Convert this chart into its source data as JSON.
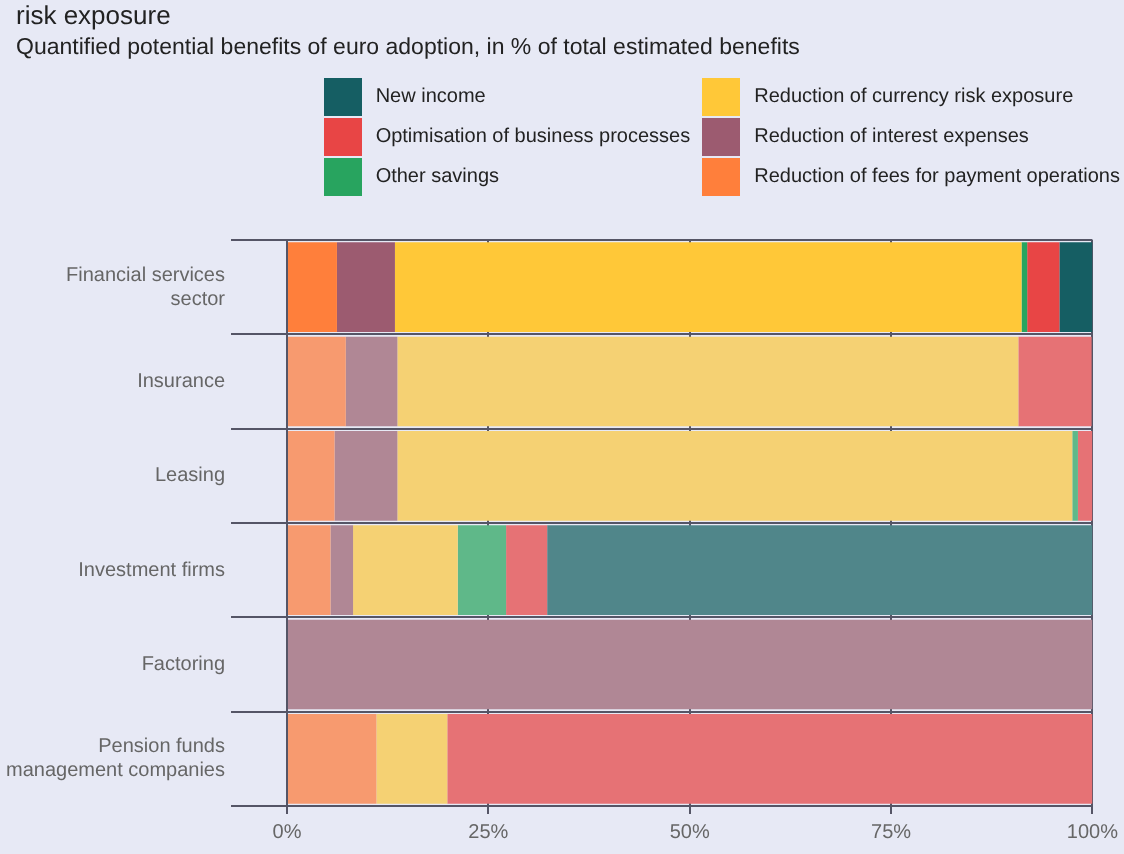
{
  "chart_data": {
    "type": "bar",
    "title": "risk exposure",
    "subtitle": "Quantified potential benefits of euro adoption, in % of total estimated benefits",
    "orientation": "horizontal",
    "stacked": true,
    "grid": true,
    "legend": "top",
    "categories": [
      "Financial services sector",
      "Insurance",
      "Leasing",
      "Investment firms",
      "Factoring",
      "Pension funds management companies"
    ],
    "xlim": [
      0,
      100
    ],
    "xticks": [
      {
        "value": 0,
        "label": "0%"
      },
      {
        "value": 25,
        "label": "25%"
      },
      {
        "value": 50,
        "label": "50%"
      },
      {
        "value": 75,
        "label": "75%"
      },
      {
        "value": 100,
        "label": "100%"
      }
    ],
    "series": [
      {
        "name": "Reduction of fees for payment operations",
        "color": "#ff7f3b",
        "colors": [
          "#ff7f3b",
          "#f79a6f",
          "#f79a6f",
          "#f79a6f",
          "#f79a6f",
          "#f79a6f"
        ],
        "values": [
          6.2,
          7.3,
          5.9,
          5.4,
          null,
          11.1
        ]
      },
      {
        "name": "Reduction of interest expenses",
        "color": "#9c5b70",
        "colors": [
          "#9c5b70",
          "#b08795",
          "#b08795",
          "#b08795",
          "#b08795",
          "#b08795"
        ],
        "values": [
          7.2,
          6.4,
          7.8,
          2.8,
          100,
          null
        ]
      },
      {
        "name": "Reduction of currency risk exposure",
        "color": "#ffc838",
        "colors": [
          "#ffc838",
          "#f5d173",
          "#f5d173",
          "#f5d173",
          "#f5d173",
          "#f5d173"
        ],
        "values": [
          77.8,
          77.1,
          83.8,
          13.0,
          null,
          8.8
        ]
      },
      {
        "name": "Other savings",
        "color": "#28a45f",
        "colors": [
          "#28a45f",
          "#5fb889",
          "#5fb889",
          "#5fb889",
          "#5fb889",
          "#5fb889"
        ],
        "values": [
          0.7,
          null,
          0.7,
          6.0,
          null,
          null
        ]
      },
      {
        "name": "Optimisation of business processes",
        "color": "#e84545",
        "colors": [
          "#e84545",
          "#e67275",
          "#e67275",
          "#e67275",
          "#e67275",
          "#e67275"
        ],
        "values": [
          4.0,
          9.1,
          1.8,
          5.1,
          null,
          80.1
        ]
      },
      {
        "name": "New income",
        "color": "#155e63",
        "colors": [
          "#155e63",
          "#50868a",
          "#50868a",
          "#50868a",
          "#50868a",
          "#50868a"
        ],
        "values": [
          4.1,
          null,
          null,
          67.7,
          null,
          null
        ]
      }
    ]
  }
}
